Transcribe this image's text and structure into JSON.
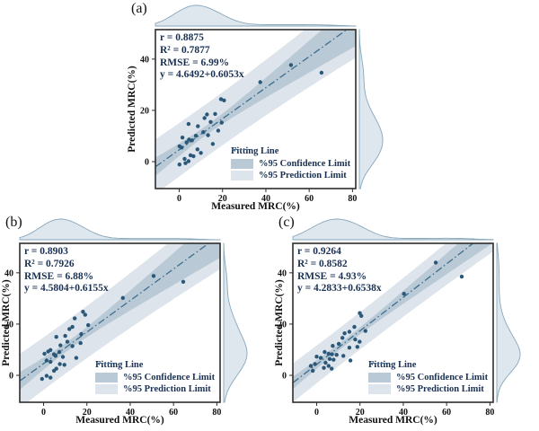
{
  "colors": {
    "text": "#1a3153",
    "label_text": "#111111",
    "axis": "#2d2d2d",
    "dot": "#2b5878",
    "fit_line": "#3d6e8e",
    "confidence_band": "#b9c9d5",
    "prediction_band": "#dde4ec",
    "density_fill": "#dfe7ee",
    "density_stroke": "#86a7bc",
    "background": "#ffffff"
  },
  "axes": {
    "xlabel": "Measured MRC(%)",
    "ylabel": "Predicted MRC(%)",
    "x_ticks": [
      0,
      20,
      40,
      60,
      80
    ],
    "y_ticks": [
      0,
      20,
      40
    ],
    "x_min": -11,
    "x_max": 81.5,
    "y_min": -10.5,
    "y_max": 51.5
  },
  "legend": {
    "fit": "Fitting Line",
    "confidence": "%95 Confidence Limit",
    "prediction": "%95 Prediction Limit"
  },
  "chart_data": [
    {
      "label": "(a)",
      "type": "scatter",
      "xlabel": "Measured MRC(%)",
      "ylabel": "Predicted MRC(%)",
      "xlim": [
        -11,
        81.5
      ],
      "ylim": [
        -10.5,
        51.5
      ],
      "x_ticks": [
        0,
        20,
        40,
        60,
        80
      ],
      "y_ticks": [
        0,
        20,
        40
      ],
      "legend_entries": [
        "Fitting Line",
        "%95 Confidence Limit",
        "%95 Prediction Limit"
      ],
      "marginal_densities": "kde-top-and-right",
      "stats_lines": [
        "r = 0.8875",
        "R² = 0.7877",
        "RMSE = 6.99%",
        "y = 4.6492+0.6053x"
      ],
      "fit": {
        "intercept": 4.6492,
        "slope": 0.6053,
        "rmse": 6.99,
        "r": 0.8875,
        "r2": 0.7877
      },
      "points": [
        [
          0.1,
          -1.1
        ],
        [
          2.9,
          -0.6
        ],
        [
          2.5,
          1.1
        ],
        [
          4.3,
          0.2
        ],
        [
          5.2,
          2.5
        ],
        [
          6.6,
          2.1
        ],
        [
          10,
          3.4
        ],
        [
          8.4,
          4.8
        ],
        [
          1.1,
          5.5
        ],
        [
          0.1,
          6
        ],
        [
          15.5,
          6.9
        ],
        [
          3.4,
          7.5
        ],
        [
          5.9,
          8.3
        ],
        [
          4.5,
          8.6
        ],
        [
          1.5,
          9.4
        ],
        [
          7.7,
          10.1
        ],
        [
          13.3,
          10.3
        ],
        [
          11.1,
          11.5
        ],
        [
          18,
          12.1
        ],
        [
          8.6,
          13.8
        ],
        [
          4.3,
          14.7
        ],
        [
          19.6,
          15.2
        ],
        [
          14.5,
          15.5
        ],
        [
          11.7,
          17
        ],
        [
          12.8,
          18.4
        ],
        [
          16.6,
          18.6
        ],
        [
          19.3,
          24.4
        ],
        [
          20.7,
          23.9
        ],
        [
          37.4,
          31
        ],
        [
          51.6,
          37.7
        ],
        [
          65.7,
          34.7
        ]
      ]
    },
    {
      "label": "(b)",
      "type": "scatter",
      "xlabel": "Measured MRC(%)",
      "ylabel": "Predicted MRC(%)",
      "xlim": [
        -11,
        81.5
      ],
      "ylim": [
        -10.5,
        51.5
      ],
      "x_ticks": [
        0,
        20,
        40,
        60,
        80
      ],
      "y_ticks": [
        0,
        20,
        40
      ],
      "legend_entries": [
        "Fitting Line",
        "%95 Confidence Limit",
        "%95 Prediction Limit"
      ],
      "marginal_densities": "kde-top-and-right",
      "stats_lines": [
        "r = 0.8903",
        "R² = 0.7926",
        "RMSE = 6.88%",
        "y = 4.5804+0.6155x"
      ],
      "fit": {
        "intercept": 4.5804,
        "slope": 0.6155,
        "rmse": 6.88,
        "r": 0.8903,
        "r2": 0.7926
      },
      "points": [
        [
          -0.7,
          -1.4
        ],
        [
          1.4,
          -0.2
        ],
        [
          3.2,
          -0.9
        ],
        [
          4.8,
          1.8
        ],
        [
          5.9,
          2.6
        ],
        [
          9.6,
          4.1
        ],
        [
          7.5,
          4.4
        ],
        [
          3.2,
          5.3
        ],
        [
          1.4,
          5.8
        ],
        [
          15.1,
          6.8
        ],
        [
          8.9,
          7.2
        ],
        [
          5.5,
          7.6
        ],
        [
          4.8,
          8.2
        ],
        [
          0.4,
          8.4
        ],
        [
          7.3,
          9.1
        ],
        [
          2.1,
          9.3
        ],
        [
          3.2,
          9.9
        ],
        [
          13.3,
          11.4
        ],
        [
          7.8,
          11.7
        ],
        [
          17.1,
          12.6
        ],
        [
          11,
          13.1
        ],
        [
          5.9,
          15
        ],
        [
          10,
          15.4
        ],
        [
          17.4,
          16.1
        ],
        [
          11.9,
          18.1
        ],
        [
          13.3,
          18.9
        ],
        [
          20.6,
          19.6
        ],
        [
          14.4,
          22.2
        ],
        [
          19.2,
          23.6
        ],
        [
          18.2,
          24.8
        ],
        [
          36.6,
          30.2
        ],
        [
          50.8,
          38.8
        ],
        [
          64.5,
          36.5
        ]
      ]
    },
    {
      "label": "(c)",
      "type": "scatter",
      "xlabel": "Measured MRC(%)",
      "ylabel": "Predicted MRC(%)",
      "xlim": [
        -11,
        81.5
      ],
      "ylim": [
        -10.5,
        51.5
      ],
      "x_ticks": [
        0,
        20,
        40,
        60,
        80
      ],
      "y_ticks": [
        0,
        20,
        40
      ],
      "legend_entries": [
        "Fitting Line",
        "%95 Confidence Limit",
        "%95 Prediction Limit"
      ],
      "marginal_densities": "kde-top-and-right",
      "stats_lines": [
        "r = 0.9264",
        "R² = 0.8582",
        "RMSE = 4.93%",
        "y = 4.2833+0.6538x"
      ],
      "fit": {
        "intercept": 4.2833,
        "slope": 0.6538,
        "rmse": 4.93,
        "r": 0.9264,
        "r2": 0.8582
      },
      "points": [
        [
          -2.7,
          3.7
        ],
        [
          -1.8,
          1.8
        ],
        [
          -0.8,
          4.4
        ],
        [
          0,
          7.3
        ],
        [
          1.9,
          6.8
        ],
        [
          3.3,
          2.9
        ],
        [
          3.7,
          9.1
        ],
        [
          4.1,
          4.9
        ],
        [
          5.5,
          3.7
        ],
        [
          5.5,
          8.4
        ],
        [
          6,
          6.4
        ],
        [
          6.9,
          2.6
        ],
        [
          7.1,
          8.2
        ],
        [
          7.4,
          11.5
        ],
        [
          7.8,
          6.1
        ],
        [
          9.2,
          8
        ],
        [
          10.2,
          12.3
        ],
        [
          11.9,
          14.6
        ],
        [
          12.3,
          7.6
        ],
        [
          12.9,
          16.4
        ],
        [
          15.1,
          10.8
        ],
        [
          15.1,
          17
        ],
        [
          15.6,
          5.8
        ],
        [
          17.4,
          18.9
        ],
        [
          17.8,
          14
        ],
        [
          18.8,
          11.1
        ],
        [
          19.8,
          13.1
        ],
        [
          19.9,
          24.3
        ],
        [
          20.6,
          23.2
        ],
        [
          22.5,
          17.3
        ],
        [
          40.3,
          31.8
        ],
        [
          55,
          44
        ],
        [
          67,
          38.5
        ]
      ]
    }
  ]
}
